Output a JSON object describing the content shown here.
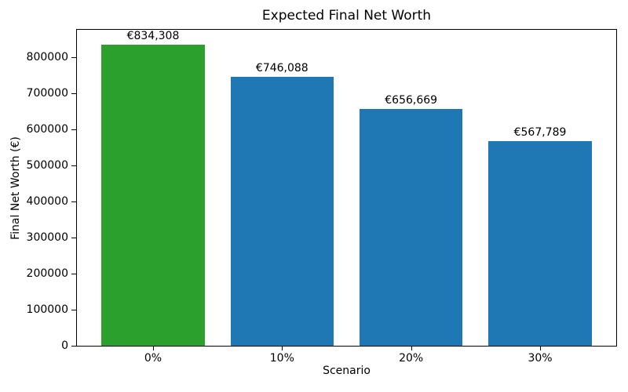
{
  "chart_data": {
    "type": "bar",
    "title": "Expected Final Net Worth",
    "xlabel": "Scenario",
    "ylabel": "Final Net Worth (€)",
    "categories": [
      "0%",
      "10%",
      "20%",
      "30%"
    ],
    "values": [
      834308,
      746088,
      656669,
      567789
    ],
    "bar_labels": [
      "€834,308",
      "€746,088",
      "€656,669",
      "€567,789"
    ],
    "bar_colors": [
      "#2ca02c",
      "#1f77b4",
      "#1f77b4",
      "#1f77b4"
    ],
    "highlight_color": "#2ca02c",
    "default_bar_color": "#1f77b4",
    "yticks": [
      0,
      100000,
      200000,
      300000,
      400000,
      500000,
      600000,
      700000,
      800000
    ],
    "ylim": [
      0,
      876023
    ],
    "xlim": [
      -0.59,
      3.59
    ],
    "bar_width_units": 0.8,
    "grid": false,
    "legend": null,
    "frame": "full-box",
    "background": "#ffffff"
  }
}
